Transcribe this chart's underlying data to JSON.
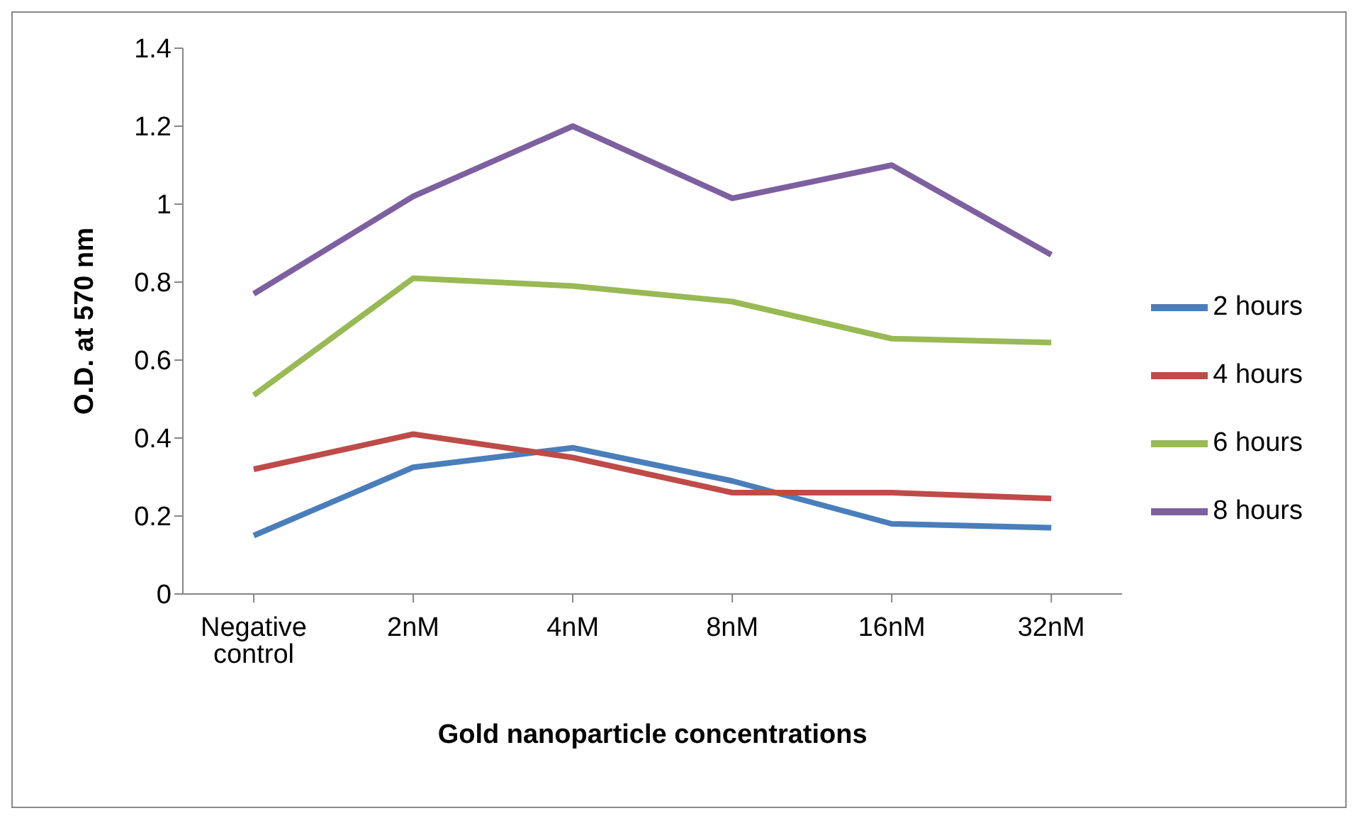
{
  "chart_data": {
    "type": "line",
    "xlabel": "Gold nanoparticle concentrations",
    "ylabel": "O.D. at 570 nm",
    "categories": [
      "Negative control",
      "2nM",
      "4nM",
      "8nM",
      "16nM",
      "32nM"
    ],
    "series": [
      {
        "name": "2 hours",
        "color": "#4a7ebb",
        "values": [
          0.15,
          0.325,
          0.375,
          0.29,
          0.18,
          0.17
        ]
      },
      {
        "name": "4 hours",
        "color": "#be4b48",
        "values": [
          0.32,
          0.41,
          0.35,
          0.26,
          0.26,
          0.245
        ]
      },
      {
        "name": "6 hours",
        "color": "#98b954",
        "values": [
          0.51,
          0.81,
          0.79,
          0.75,
          0.655,
          0.645
        ]
      },
      {
        "name": "8 hours",
        "color": "#7d60a0",
        "values": [
          0.77,
          1.02,
          1.2,
          1.015,
          1.1,
          0.87
        ]
      }
    ],
    "ylim": [
      0,
      1.4
    ],
    "yticks": [
      0,
      0.2,
      0.4,
      0.6,
      0.8,
      1,
      1.2,
      1.4
    ],
    "grid": false,
    "legend": "right",
    "marker": "none",
    "line_style": "solid"
  }
}
